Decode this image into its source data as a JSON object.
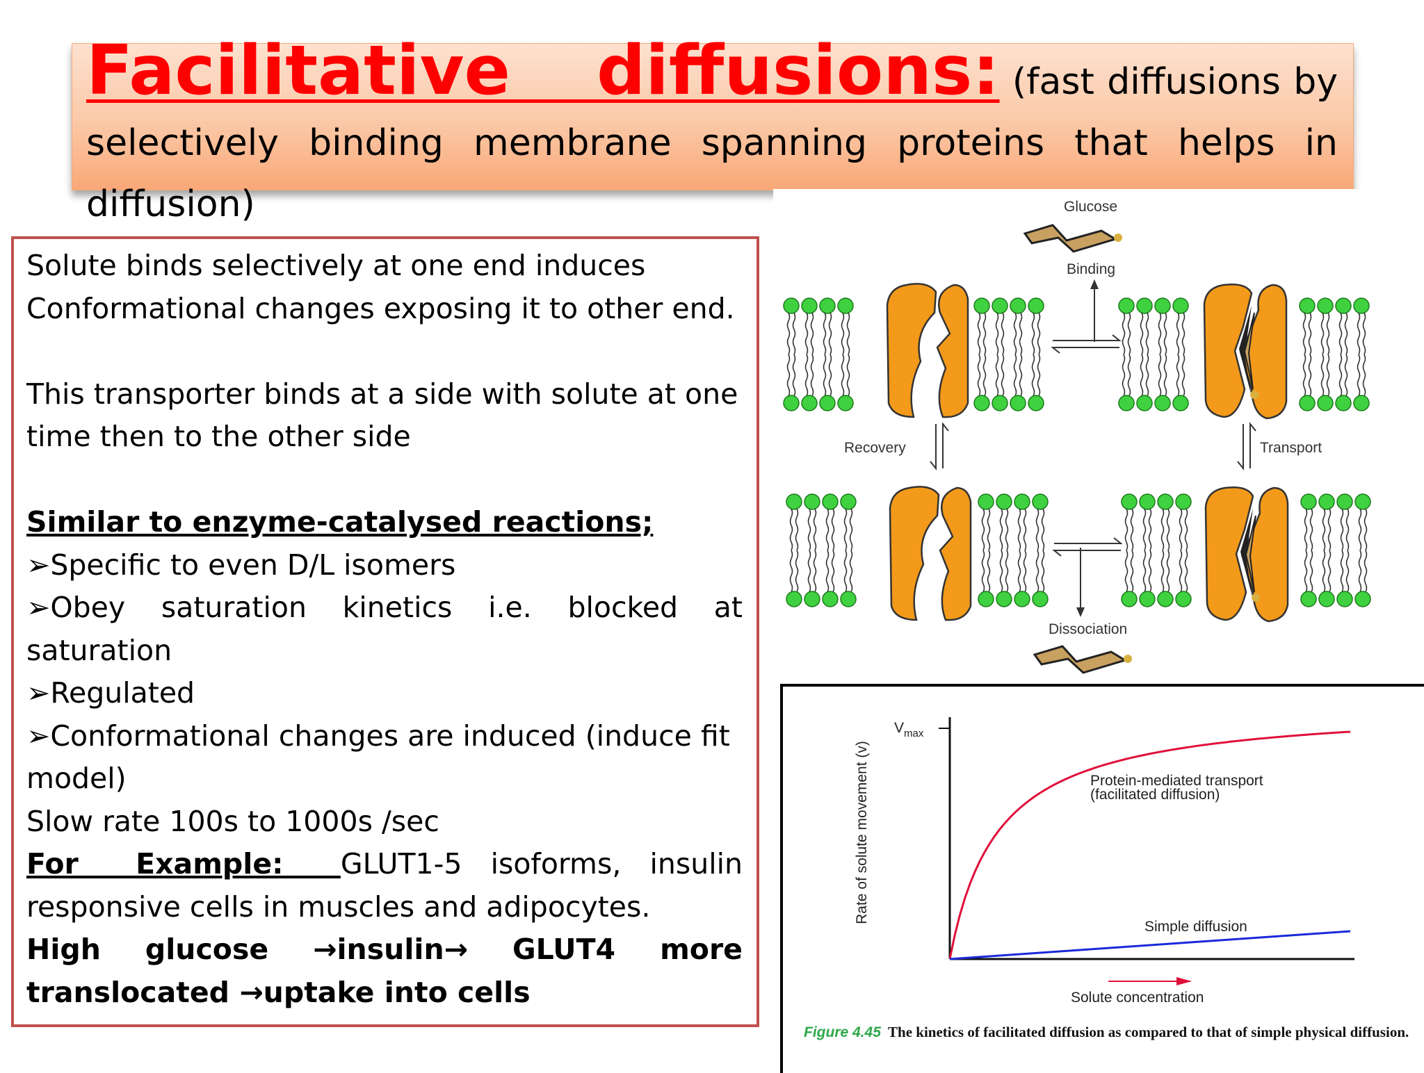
{
  "title": {
    "main": "Facilitative diffusions:",
    "sub_line1_a": "(fast",
    "sub_line1_b": "diffusions",
    "sub_line1_c": "by",
    "sub_line2": "selectively binding membrane spanning proteins that helps in",
    "sub_line3": "diffusion)"
  },
  "body": {
    "p1_line1": "Solute binds selectively at one end induces",
    "p1_line2": "Conformational changes exposing it to other end.",
    "p2_line1": "This transporter binds at a side with solute at one",
    "p2_line2": "time then to the other side",
    "heading": "Similar to enzyme-catalysed reactions;",
    "bullet_glyph": "➢",
    "bullet1": "Specific to even D/L isomers",
    "bullet2_line1": "Obey saturation kinetics i.e. blocked at",
    "bullet2_line2": "saturation",
    "bullet3": "Regulated",
    "bullet4_line1": "Conformational changes are induced (induce fit",
    "bullet4_line2": "model)",
    "slow_rate": "Slow rate 100s to 1000s /sec",
    "example_label": "For Example: ",
    "example_line1": "GLUT1-5 isoforms, insulin",
    "example_line2": "responsive cells in muscles and adipocytes.",
    "high_a": "High glucose ",
    "arrow": "→",
    "high_b": "insulin",
    "high_c": " GLUT4 more",
    "high_line2_a": "translocated ",
    "high_line2_b": "uptake into cells"
  },
  "diagram": {
    "glucose": "Glucose",
    "binding": "Binding",
    "recovery": "Recovery",
    "transport": "Transport",
    "dissociation": "Dissociation",
    "protein_color": "#f39a1a",
    "lipid_head_color": "#3fd13f",
    "glucose_color": "#c8a060"
  },
  "chart_data": {
    "type": "line",
    "ylabel": "Rate of solute movement (v)",
    "xlabel": "Solute concentration",
    "y_tick_label": "Vmax",
    "series": [
      {
        "name": "Protein-mediated transport (facilitated diffusion)",
        "color": "#e0103a",
        "label_line1": "Protein-mediated transport",
        "label_line2": "(facilitated diffusion)",
        "shape": "saturating hyperbola approaching Vmax"
      },
      {
        "name": "Simple diffusion",
        "color": "#1a2ad8",
        "shape": "linear, low slope"
      }
    ],
    "caption_number": "Figure 4.45",
    "caption_text": "The kinetics of facilitated diffusion as compared to that of simple physical diffusion."
  }
}
